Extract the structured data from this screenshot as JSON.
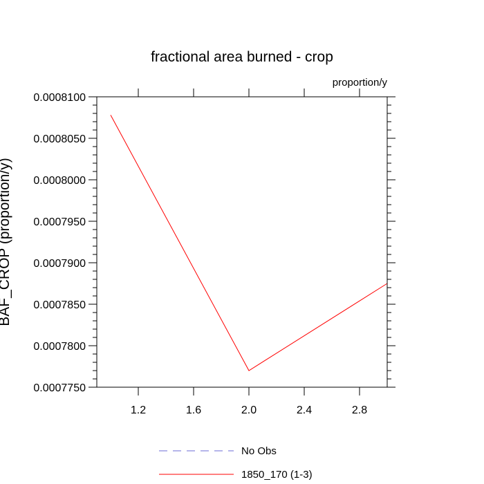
{
  "chart_data": {
    "type": "line",
    "title": "fractional area burned - crop",
    "subtitle": "proportion/y",
    "ylabel": "BAF_CROP (proportion/y)",
    "xlabel": "",
    "xlim": [
      0.9,
      3.0
    ],
    "ylim": [
      0.000775,
      0.00081
    ],
    "x_ticks": [
      1.2,
      1.6,
      2.0,
      2.4,
      2.8
    ],
    "x_tick_labels": [
      "1.2",
      "1.6",
      "2.0",
      "2.4",
      "2.8"
    ],
    "y_ticks": [
      0.000775,
      0.00078,
      0.000785,
      0.00079,
      0.000795,
      0.0008,
      0.000805,
      0.00081
    ],
    "y_tick_labels": [
      "0.0007750",
      "0.0007800",
      "0.0007850",
      "0.0007900",
      "0.0007950",
      "0.0008000",
      "0.0008050",
      "0.0008100"
    ],
    "grid": false,
    "legend_position": "bottom",
    "series": [
      {
        "name": "No Obs",
        "color": "#6b6bd6",
        "dash": "dashed",
        "x": [],
        "y": []
      },
      {
        "name": "1850_170 (1-3)",
        "color": "#ff0000",
        "dash": "solid",
        "x": [
          1,
          2,
          3
        ],
        "y": [
          0.0008078,
          0.000777,
          0.0007875
        ]
      }
    ]
  }
}
